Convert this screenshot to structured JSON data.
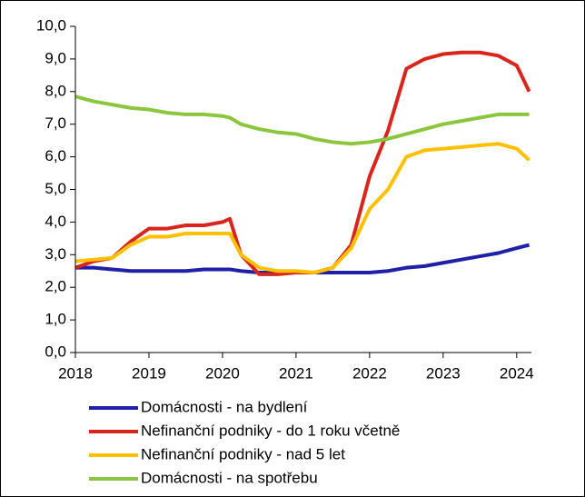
{
  "chart_data": {
    "type": "line",
    "x": [
      2018,
      2018.25,
      2018.5,
      2018.75,
      2019,
      2019.25,
      2019.5,
      2019.75,
      2020,
      2020.1,
      2020.25,
      2020.5,
      2020.75,
      2021,
      2021.25,
      2021.5,
      2021.75,
      2022,
      2022.25,
      2022.5,
      2022.75,
      2023,
      2023.25,
      2023.5,
      2023.75,
      2024,
      2024.17
    ],
    "series": [
      {
        "name": "Domácnosti - na bydlení",
        "color": "#1f1fa8",
        "values": [
          2.6,
          2.6,
          2.55,
          2.5,
          2.5,
          2.5,
          2.5,
          2.55,
          2.55,
          2.55,
          2.5,
          2.45,
          2.45,
          2.45,
          2.45,
          2.45,
          2.45,
          2.45,
          2.5,
          2.6,
          2.65,
          2.75,
          2.85,
          2.95,
          3.05,
          3.2,
          3.3
        ]
      },
      {
        "name": "Nefinanční podniky - do 1 roku včetně",
        "color": "#d9261c",
        "values": [
          2.6,
          2.8,
          2.9,
          3.4,
          3.8,
          3.8,
          3.9,
          3.9,
          4.0,
          4.1,
          3.0,
          2.4,
          2.4,
          2.45,
          2.45,
          2.6,
          3.3,
          5.4,
          6.8,
          8.7,
          9.0,
          9.15,
          9.2,
          9.2,
          9.1,
          8.8,
          8.0
        ]
      },
      {
        "name": "Nefinanční podniky - nad 5 let",
        "color": "#ffc000",
        "values": [
          2.8,
          2.85,
          2.9,
          3.3,
          3.55,
          3.55,
          3.65,
          3.65,
          3.65,
          3.65,
          3.0,
          2.6,
          2.5,
          2.5,
          2.45,
          2.6,
          3.2,
          4.4,
          5.0,
          6.0,
          6.2,
          6.25,
          6.3,
          6.35,
          6.4,
          6.25,
          5.9
        ]
      },
      {
        "name": "Domácnosti - na spotřebu",
        "color": "#8cc63f",
        "values": [
          7.85,
          7.7,
          7.6,
          7.5,
          7.45,
          7.35,
          7.3,
          7.3,
          7.25,
          7.2,
          7.0,
          6.85,
          6.75,
          6.7,
          6.55,
          6.45,
          6.4,
          6.45,
          6.55,
          6.7,
          6.85,
          7.0,
          7.1,
          7.2,
          7.3,
          7.3,
          7.3
        ]
      }
    ],
    "xlim": [
      2018,
      2024.2
    ],
    "xticks": [
      2018,
      2019,
      2020,
      2021,
      2022,
      2023,
      2024
    ],
    "ylim": [
      0,
      10
    ],
    "yticks": [
      {
        "value": 0,
        "label": "0,0"
      },
      {
        "value": 1,
        "label": "1,0"
      },
      {
        "value": 2,
        "label": "2,0"
      },
      {
        "value": 3,
        "label": "3,0"
      },
      {
        "value": 4,
        "label": "4,0"
      },
      {
        "value": 5,
        "label": "5,0"
      },
      {
        "value": 6,
        "label": "6,0"
      },
      {
        "value": 7,
        "label": "7,0"
      },
      {
        "value": 8,
        "label": "8,0"
      },
      {
        "value": 9,
        "label": "9,0"
      },
      {
        "value": 10,
        "label": "10,0"
      }
    ],
    "grid": false,
    "legend": "bottom"
  }
}
